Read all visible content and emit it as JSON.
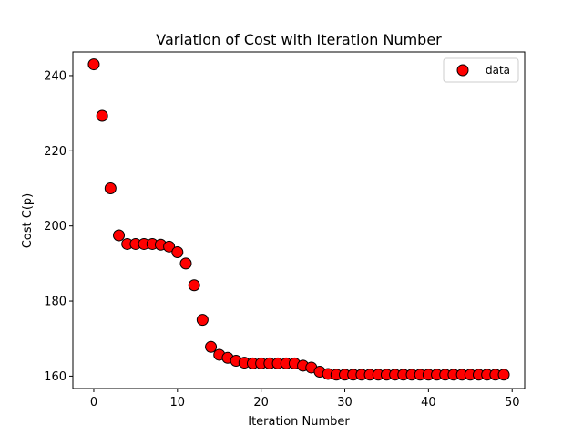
{
  "chart_data": {
    "type": "scatter",
    "title": "Variation of Cost with Iteration Number",
    "xlabel": "Iteration Number",
    "ylabel": "Cost C(p)",
    "xlim": [
      -2.5,
      51.5
    ],
    "ylim": [
      156.7,
      246.3
    ],
    "xticks": [
      0,
      10,
      20,
      30,
      40,
      50
    ],
    "yticks": [
      160,
      180,
      200,
      220,
      240
    ],
    "grid": false,
    "legend_position": "top-right",
    "marker_color": "#ff0000",
    "marker_edge_color": "#000000",
    "series": [
      {
        "name": "data",
        "x": [
          0,
          1,
          2,
          3,
          4,
          5,
          6,
          7,
          8,
          9,
          10,
          11,
          12,
          13,
          14,
          15,
          16,
          17,
          18,
          19,
          20,
          21,
          22,
          23,
          24,
          25,
          26,
          27,
          28,
          29,
          30,
          31,
          32,
          33,
          34,
          35,
          36,
          37,
          38,
          39,
          40,
          41,
          42,
          43,
          44,
          45,
          46,
          47,
          48,
          49
        ],
        "y": [
          243.0,
          229.3,
          210.0,
          197.5,
          195.2,
          195.2,
          195.2,
          195.2,
          195.0,
          194.5,
          193.0,
          190.0,
          184.2,
          175.0,
          167.8,
          165.7,
          164.9,
          164.1,
          163.6,
          163.4,
          163.4,
          163.4,
          163.4,
          163.4,
          163.4,
          162.8,
          162.3,
          161.2,
          160.6,
          160.4,
          160.4,
          160.4,
          160.4,
          160.4,
          160.4,
          160.4,
          160.4,
          160.4,
          160.4,
          160.4,
          160.4,
          160.4,
          160.4,
          160.4,
          160.4,
          160.4,
          160.4,
          160.4,
          160.4,
          160.4
        ]
      }
    ]
  }
}
